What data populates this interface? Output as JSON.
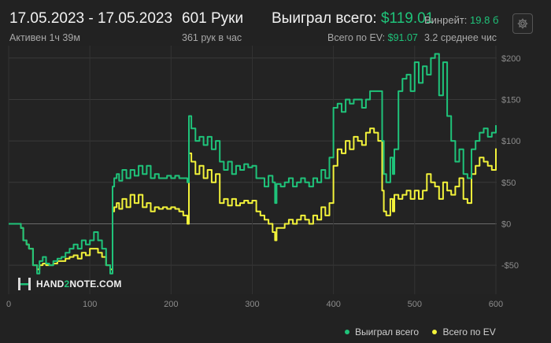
{
  "header": {
    "date_range": "17.05.2023 - 17.05.2023",
    "active_time": "Активен 1ч 39м",
    "hands_label": "601 Руки",
    "hands_per_hour": "361 рук в час",
    "won_total_label": "Выиграл всего:",
    "won_total_value": "$119.01",
    "ev_total_label": "Всего по EV:",
    "ev_total_value": "$91.07",
    "winrate_label": "Винрейт:",
    "winrate_value": "19.8 б",
    "avg_text": "3.2 среднее чис"
  },
  "watermark": {
    "part1": "HAND",
    "part2": "2",
    "part3": "NOTE.COM"
  },
  "icons": {
    "settings": "gear-icon",
    "logo": "hand2note-logo-icon"
  },
  "colors": {
    "won": "#1fc37a",
    "ev": "#f2f23a",
    "background": "#222222"
  },
  "chart_data": {
    "type": "line",
    "xlim": [
      0,
      601
    ],
    "ylim": [
      -85,
      215
    ],
    "x_ticks": [
      0,
      100,
      200,
      300,
      400,
      500,
      600
    ],
    "y_ticks": [
      -50,
      0,
      50,
      100,
      150,
      200
    ],
    "y_tick_labels": [
      "-$50",
      "$0",
      "$50",
      "$100",
      "$150",
      "$200"
    ],
    "grid": true,
    "legend_position": "bottom-right",
    "series": [
      {
        "name": "Выиграл всего",
        "color": "#1fc37a",
        "x": [
          0,
          10,
          15,
          18,
          22,
          25,
          30,
          35,
          38,
          42,
          46,
          50,
          55,
          60,
          65,
          70,
          75,
          80,
          85,
          90,
          95,
          100,
          105,
          110,
          115,
          120,
          125,
          128,
          130,
          133,
          136,
          140,
          145,
          150,
          155,
          160,
          165,
          170,
          175,
          180,
          185,
          190,
          195,
          200,
          205,
          210,
          215,
          220,
          222,
          225,
          230,
          235,
          240,
          245,
          250,
          255,
          260,
          265,
          270,
          275,
          280,
          285,
          290,
          295,
          300,
          305,
          310,
          315,
          320,
          325,
          328,
          330,
          335,
          340,
          345,
          350,
          355,
          360,
          365,
          370,
          375,
          380,
          385,
          390,
          395,
          400,
          405,
          410,
          415,
          420,
          425,
          430,
          435,
          440,
          445,
          450,
          455,
          460,
          462,
          465,
          470,
          473,
          475,
          480,
          485,
          490,
          495,
          500,
          505,
          510,
          515,
          520,
          525,
          530,
          535,
          540,
          545,
          550,
          555,
          560,
          565,
          570,
          575,
          580,
          585,
          590,
          595,
          600
        ],
        "y": [
          0,
          0,
          -5,
          -20,
          -25,
          -30,
          -50,
          -60,
          -45,
          -40,
          -48,
          -50,
          -45,
          -42,
          -40,
          -35,
          -30,
          -25,
          -30,
          -20,
          -25,
          -20,
          -10,
          -20,
          -30,
          -50,
          -60,
          45,
          55,
          60,
          52,
          65,
          55,
          65,
          58,
          70,
          60,
          70,
          55,
          60,
          55,
          55,
          58,
          55,
          58,
          55,
          55,
          50,
          130,
          115,
          100,
          105,
          95,
          105,
          90,
          100,
          75,
          65,
          75,
          60,
          70,
          65,
          72,
          68,
          70,
          55,
          55,
          45,
          58,
          50,
          25,
          48,
          45,
          50,
          55,
          45,
          50,
          55,
          50,
          45,
          55,
          50,
          65,
          55,
          80,
          140,
          145,
          135,
          150,
          145,
          150,
          150,
          140,
          150,
          160,
          160,
          160,
          100,
          60,
          50,
          80,
          60,
          90,
          160,
          175,
          180,
          160,
          195,
          170,
          190,
          180,
          200,
          205,
          155,
          195,
          130,
          100,
          75,
          90,
          60,
          55,
          90,
          100,
          110,
          115,
          105,
          110,
          119
        ]
      },
      {
        "name": "Всего по EV",
        "color": "#f2f23a",
        "x": [
          0,
          10,
          15,
          18,
          22,
          25,
          30,
          35,
          38,
          42,
          46,
          50,
          55,
          60,
          65,
          70,
          75,
          80,
          85,
          90,
          95,
          100,
          105,
          110,
          115,
          120,
          125,
          128,
          130,
          133,
          136,
          140,
          145,
          150,
          155,
          160,
          165,
          170,
          175,
          180,
          185,
          190,
          195,
          200,
          205,
          210,
          215,
          220,
          222,
          225,
          230,
          235,
          240,
          245,
          250,
          255,
          260,
          265,
          270,
          275,
          280,
          285,
          290,
          295,
          300,
          305,
          310,
          315,
          320,
          325,
          328,
          330,
          335,
          340,
          345,
          350,
          355,
          360,
          365,
          370,
          375,
          380,
          385,
          390,
          395,
          400,
          405,
          410,
          415,
          420,
          425,
          430,
          435,
          440,
          445,
          450,
          455,
          460,
          462,
          465,
          470,
          473,
          475,
          480,
          485,
          490,
          495,
          500,
          505,
          510,
          515,
          520,
          525,
          530,
          535,
          540,
          545,
          550,
          555,
          560,
          565,
          570,
          575,
          580,
          585,
          590,
          595,
          600
        ],
        "y": [
          0,
          0,
          -5,
          -20,
          -25,
          -30,
          -50,
          -55,
          -50,
          -48,
          -50,
          -50,
          -48,
          -45,
          -45,
          -42,
          -40,
          -38,
          -42,
          -35,
          -38,
          -30,
          -30,
          -35,
          -40,
          -50,
          -55,
          15,
          20,
          25,
          18,
          30,
          20,
          35,
          25,
          35,
          20,
          25,
          15,
          20,
          18,
          20,
          18,
          20,
          18,
          15,
          10,
          0,
          85,
          75,
          60,
          70,
          55,
          65,
          50,
          60,
          25,
          30,
          22,
          30,
          22,
          25,
          28,
          25,
          28,
          15,
          10,
          5,
          0,
          -10,
          -20,
          -5,
          -5,
          0,
          5,
          0,
          5,
          10,
          5,
          0,
          10,
          5,
          20,
          10,
          25,
          70,
          90,
          85,
          100,
          90,
          105,
          100,
          95,
          110,
          115,
          110,
          100,
          40,
          15,
          10,
          30,
          15,
          35,
          30,
          35,
          40,
          30,
          40,
          30,
          40,
          60,
          50,
          45,
          30,
          50,
          40,
          35,
          45,
          55,
          30,
          25,
          60,
          70,
          80,
          75,
          70,
          65,
          91
        ]
      }
    ]
  }
}
